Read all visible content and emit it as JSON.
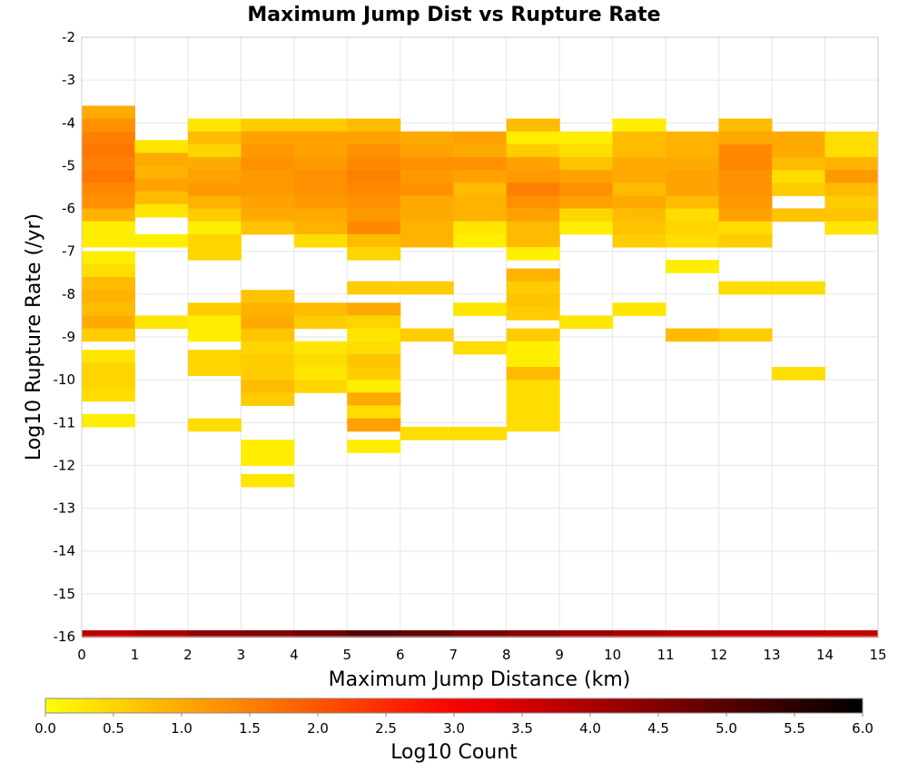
{
  "chart_data": {
    "type": "heatmap",
    "title": "Maximum Jump Dist vs Rupture Rate",
    "xlabel": "Maximum Jump Distance (km)",
    "ylabel": "Log10 Rupture Rate (/yr)",
    "xlim": [
      0,
      15
    ],
    "ylim": [
      -16,
      -2
    ],
    "x_ticks": [
      "0",
      "1",
      "2",
      "3",
      "4",
      "5",
      "6",
      "7",
      "8",
      "9",
      "10",
      "11",
      "12",
      "13",
      "14",
      "15"
    ],
    "y_ticks": [
      "-2",
      "-3",
      "-4",
      "-5",
      "-6",
      "-7",
      "-8",
      "-9",
      "-10",
      "-11",
      "-12",
      "-13",
      "-14",
      "-15",
      "-16"
    ],
    "grid": true,
    "cell_height": 0.3,
    "colorbar": {
      "label": "Log10 Count",
      "range": [
        0,
        6
      ],
      "ticks": [
        "0.0",
        "0.5",
        "1.0",
        "1.5",
        "2.0",
        "2.5",
        "3.0",
        "3.5",
        "4.0",
        "4.5",
        "5.0",
        "5.5",
        "6.0"
      ],
      "colors": [
        "#ffff00",
        "#ff8000",
        "#ff0000",
        "#800000",
        "#000000"
      ]
    },
    "bottom_band": {
      "y": -16,
      "values": [
        3.8,
        4.0,
        4.3,
        4.5,
        4.7,
        5.0,
        4.8,
        4.6,
        4.4,
        4.2,
        4.0,
        3.9,
        3.8,
        3.8,
        3.7
      ]
    },
    "columns": [
      {
        "x": 0,
        "cells": [
          [
            -3.6,
            1.0
          ],
          [
            -3.9,
            1.3
          ],
          [
            -4.2,
            1.5
          ],
          [
            -4.5,
            1.6
          ],
          [
            -4.8,
            1.5
          ],
          [
            -5.1,
            1.6
          ],
          [
            -5.4,
            1.4
          ],
          [
            -5.7,
            1.3
          ],
          [
            -6.0,
            0.9
          ],
          [
            -6.3,
            0.2
          ],
          [
            -6.6,
            0.2
          ],
          [
            -7.0,
            0.2
          ],
          [
            -7.3,
            0.4
          ],
          [
            -7.6,
            0.8
          ],
          [
            -7.9,
            0.9
          ],
          [
            -8.2,
            0.8
          ],
          [
            -8.5,
            1.0
          ],
          [
            -8.8,
            0.6
          ],
          [
            -9.3,
            0.3
          ],
          [
            -9.6,
            0.5
          ],
          [
            -9.9,
            0.5
          ],
          [
            -10.2,
            0.4
          ],
          [
            -10.8,
            0.2
          ]
        ]
      },
      {
        "x": 1,
        "cells": [
          [
            -4.4,
            0.3
          ],
          [
            -4.7,
            1.0
          ],
          [
            -5.0,
            0.9
          ],
          [
            -5.3,
            1.1
          ],
          [
            -5.6,
            0.8
          ],
          [
            -5.9,
            0.3
          ],
          [
            -6.6,
            0.2
          ],
          [
            -8.5,
            0.3
          ]
        ]
      },
      {
        "x": 2,
        "cells": [
          [
            -3.9,
            0.3
          ],
          [
            -4.2,
            0.8
          ],
          [
            -4.5,
            0.5
          ],
          [
            -4.8,
            1.0
          ],
          [
            -5.1,
            1.1
          ],
          [
            -5.4,
            1.2
          ],
          [
            -5.7,
            0.9
          ],
          [
            -6.0,
            0.6
          ],
          [
            -6.3,
            0.2
          ],
          [
            -6.6,
            0.5
          ],
          [
            -6.9,
            0.5
          ],
          [
            -8.2,
            0.6
          ],
          [
            -8.5,
            0.2
          ],
          [
            -8.8,
            0.2
          ],
          [
            -9.3,
            0.5
          ],
          [
            -9.6,
            0.5
          ],
          [
            -10.9,
            0.4
          ]
        ]
      },
      {
        "x": 3,
        "cells": [
          [
            -3.9,
            0.6
          ],
          [
            -4.2,
            1.1
          ],
          [
            -4.5,
            1.2
          ],
          [
            -4.8,
            1.3
          ],
          [
            -5.1,
            1.2
          ],
          [
            -5.4,
            1.2
          ],
          [
            -5.7,
            1.1
          ],
          [
            -6.0,
            1.0
          ],
          [
            -6.3,
            0.7
          ],
          [
            -7.9,
            0.7
          ],
          [
            -8.2,
            0.9
          ],
          [
            -8.5,
            1.0
          ],
          [
            -8.8,
            0.7
          ],
          [
            -9.1,
            0.5
          ],
          [
            -9.4,
            0.6
          ],
          [
            -9.7,
            0.6
          ],
          [
            -10.0,
            0.8
          ],
          [
            -10.3,
            0.6
          ],
          [
            -11.4,
            0.2
          ],
          [
            -11.7,
            0.2
          ],
          [
            -12.2,
            0.3
          ]
        ]
      },
      {
        "x": 4,
        "cells": [
          [
            -3.9,
            0.6
          ],
          [
            -4.2,
            1.1
          ],
          [
            -4.5,
            1.1
          ],
          [
            -4.8,
            1.2
          ],
          [
            -5.1,
            1.3
          ],
          [
            -5.4,
            1.3
          ],
          [
            -5.7,
            1.2
          ],
          [
            -6.0,
            1.0
          ],
          [
            -6.3,
            0.9
          ],
          [
            -6.6,
            0.4
          ],
          [
            -8.2,
            0.8
          ],
          [
            -8.5,
            0.6
          ],
          [
            -9.1,
            0.3
          ],
          [
            -9.4,
            0.4
          ],
          [
            -9.7,
            0.3
          ],
          [
            -10.0,
            0.5
          ]
        ]
      },
      {
        "x": 5,
        "cells": [
          [
            -3.9,
            0.8
          ],
          [
            -4.2,
            1.1
          ],
          [
            -4.5,
            1.3
          ],
          [
            -4.8,
            1.4
          ],
          [
            -5.1,
            1.5
          ],
          [
            -5.4,
            1.4
          ],
          [
            -5.7,
            1.3
          ],
          [
            -6.0,
            1.2
          ],
          [
            -6.3,
            1.4
          ],
          [
            -6.6,
            0.8
          ],
          [
            -6.9,
            0.5
          ],
          [
            -7.7,
            0.6
          ],
          [
            -8.2,
            1.0
          ],
          [
            -8.5,
            0.5
          ],
          [
            -8.8,
            0.3
          ],
          [
            -9.1,
            0.4
          ],
          [
            -9.4,
            0.7
          ],
          [
            -9.7,
            0.6
          ],
          [
            -10.0,
            0.2
          ],
          [
            -10.3,
            1.0
          ],
          [
            -10.6,
            0.4
          ],
          [
            -10.9,
            1.1
          ],
          [
            -11.4,
            0.2
          ]
        ]
      },
      {
        "x": 6,
        "cells": [
          [
            -4.2,
            1.0
          ],
          [
            -4.5,
            1.1
          ],
          [
            -4.8,
            1.3
          ],
          [
            -5.1,
            1.2
          ],
          [
            -5.4,
            1.3
          ],
          [
            -5.7,
            1.0
          ],
          [
            -6.0,
            1.0
          ],
          [
            -6.3,
            0.9
          ],
          [
            -6.6,
            0.9
          ],
          [
            -7.7,
            0.6
          ],
          [
            -8.8,
            0.6
          ],
          [
            -11.1,
            0.4
          ]
        ]
      },
      {
        "x": 7,
        "cells": [
          [
            -4.2,
            1.1
          ],
          [
            -4.5,
            1.0
          ],
          [
            -4.8,
            1.3
          ],
          [
            -5.1,
            1.1
          ],
          [
            -5.4,
            0.8
          ],
          [
            -5.7,
            0.9
          ],
          [
            -6.0,
            0.9
          ],
          [
            -6.3,
            0.3
          ],
          [
            -6.6,
            0.2
          ],
          [
            -8.2,
            0.3
          ],
          [
            -9.1,
            0.4
          ],
          [
            -11.1,
            0.4
          ]
        ]
      },
      {
        "x": 8,
        "cells": [
          [
            -3.9,
            0.8
          ],
          [
            -4.2,
            0.2
          ],
          [
            -4.5,
            0.6
          ],
          [
            -4.8,
            1.1
          ],
          [
            -5.1,
            1.2
          ],
          [
            -5.4,
            1.5
          ],
          [
            -5.7,
            1.3
          ],
          [
            -6.0,
            1.1
          ],
          [
            -6.3,
            0.8
          ],
          [
            -6.6,
            0.8
          ],
          [
            -6.9,
            0.2
          ],
          [
            -7.4,
            0.9
          ],
          [
            -7.7,
            0.6
          ],
          [
            -8.0,
            0.7
          ],
          [
            -8.3,
            0.6
          ],
          [
            -8.8,
            0.6
          ],
          [
            -9.1,
            0.2
          ],
          [
            -9.4,
            0.2
          ],
          [
            -9.7,
            0.8
          ],
          [
            -10.0,
            0.4
          ],
          [
            -10.3,
            0.4
          ],
          [
            -10.6,
            0.4
          ],
          [
            -10.9,
            0.4
          ]
        ]
      },
      {
        "x": 9,
        "cells": [
          [
            -4.2,
            0.2
          ],
          [
            -4.5,
            0.4
          ],
          [
            -4.8,
            0.7
          ],
          [
            -5.1,
            1.1
          ],
          [
            -5.4,
            1.3
          ],
          [
            -5.7,
            1.1
          ],
          [
            -6.0,
            0.5
          ],
          [
            -6.3,
            0.2
          ],
          [
            -8.5,
            0.3
          ]
        ]
      },
      {
        "x": 10,
        "cells": [
          [
            -3.9,
            0.2
          ],
          [
            -4.2,
            0.8
          ],
          [
            -4.5,
            0.8
          ],
          [
            -4.8,
            1.0
          ],
          [
            -5.1,
            1.0
          ],
          [
            -5.4,
            0.8
          ],
          [
            -5.7,
            1.0
          ],
          [
            -6.0,
            0.8
          ],
          [
            -6.3,
            0.7
          ],
          [
            -6.6,
            0.6
          ],
          [
            -8.2,
            0.3
          ]
        ]
      },
      {
        "x": 11,
        "cells": [
          [
            -4.2,
            0.9
          ],
          [
            -4.5,
            0.9
          ],
          [
            -4.8,
            1.0
          ],
          [
            -5.1,
            1.1
          ],
          [
            -5.4,
            1.1
          ],
          [
            -5.7,
            0.8
          ],
          [
            -6.0,
            0.4
          ],
          [
            -6.3,
            0.5
          ],
          [
            -6.6,
            0.4
          ],
          [
            -7.2,
            0.2
          ],
          [
            -8.8,
            0.8
          ]
        ]
      },
      {
        "x": 12,
        "cells": [
          [
            -3.9,
            0.8
          ],
          [
            -4.2,
            1.0
          ],
          [
            -4.5,
            1.4
          ],
          [
            -4.8,
            1.4
          ],
          [
            -5.1,
            1.3
          ],
          [
            -5.4,
            1.3
          ],
          [
            -5.7,
            1.2
          ],
          [
            -6.0,
            1.1
          ],
          [
            -6.3,
            0.4
          ],
          [
            -6.6,
            0.6
          ],
          [
            -7.7,
            0.4
          ],
          [
            -8.8,
            0.6
          ]
        ]
      },
      {
        "x": 13,
        "cells": [
          [
            -4.2,
            1.0
          ],
          [
            -4.5,
            1.0
          ],
          [
            -4.8,
            0.8
          ],
          [
            -5.1,
            0.4
          ],
          [
            -5.4,
            0.6
          ],
          [
            -6.0,
            0.7
          ],
          [
            -7.7,
            0.4
          ],
          [
            -9.7,
            0.4
          ]
        ]
      },
      {
        "x": 14,
        "cells": [
          [
            -4.2,
            0.4
          ],
          [
            -4.5,
            0.4
          ],
          [
            -4.8,
            0.9
          ],
          [
            -5.1,
            1.2
          ],
          [
            -5.4,
            0.8
          ],
          [
            -5.7,
            0.6
          ],
          [
            -6.0,
            0.7
          ],
          [
            -6.3,
            0.3
          ]
        ]
      }
    ]
  }
}
